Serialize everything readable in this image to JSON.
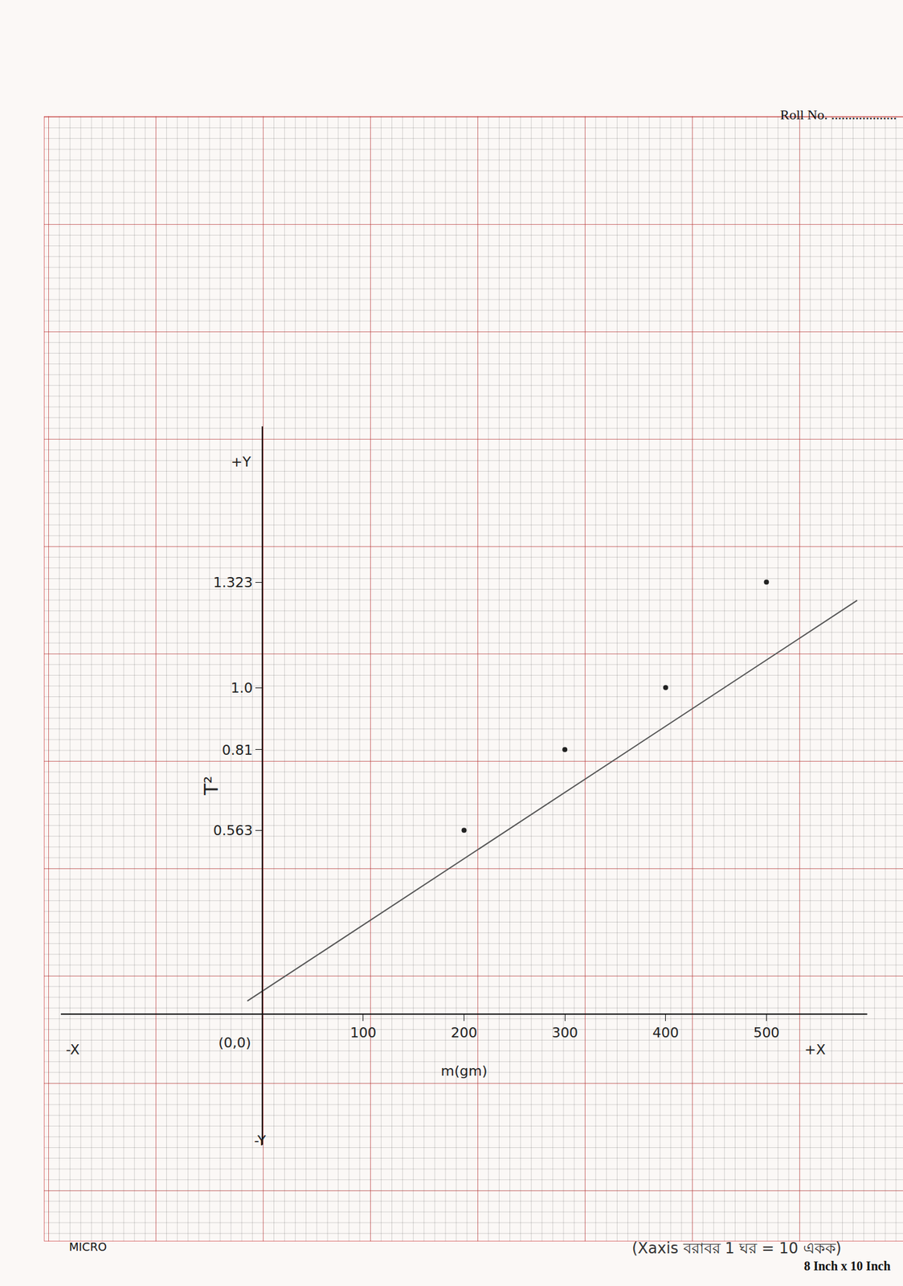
{
  "chart_data": {
    "type": "scatter",
    "x_label": "m(gm)",
    "y_label": "T²",
    "note": "(Xaxis বরাবর 1 ঘর = 10 একক)",
    "series": [
      {
        "type": "scatter",
        "color": "#222222",
        "marker": "circle",
        "x": [
          200,
          300,
          400,
          500
        ],
        "values": [
          0.563,
          0.81,
          1.0,
          1.323
        ]
      },
      {
        "type": "line",
        "color": "#555555",
        "line_style": "solid",
        "x": [
          -15,
          590
        ],
        "values": [
          0.04,
          1.267
        ]
      }
    ],
    "xlim": [
      -200,
      600
    ],
    "ylim": [
      -0.4,
      1.8
    ],
    "xticks": [
      100,
      200,
      300,
      400,
      500
    ],
    "yticks": [
      0.563,
      0.81,
      {
        "value": 1.0,
        "label": "1.0"
      },
      1.323
    ],
    "grid": false,
    "annotations": [
      {
        "text": "(0,0)",
        "x": -10,
        "y": -0.06
      },
      {
        "text": "+Y",
        "x": -10,
        "y": 1.72
      },
      {
        "text": "-Y",
        "x": 5,
        "y": -0.36
      },
      {
        "text": "-X",
        "x": -180,
        "y": -0.08
      },
      {
        "text": "+X",
        "x": 560,
        "y": -0.08
      }
    ]
  },
  "page": {
    "roll_no": "Roll No. ...................",
    "brand": "MICRO",
    "paper_size": "8 Inch x 10 Inch"
  }
}
